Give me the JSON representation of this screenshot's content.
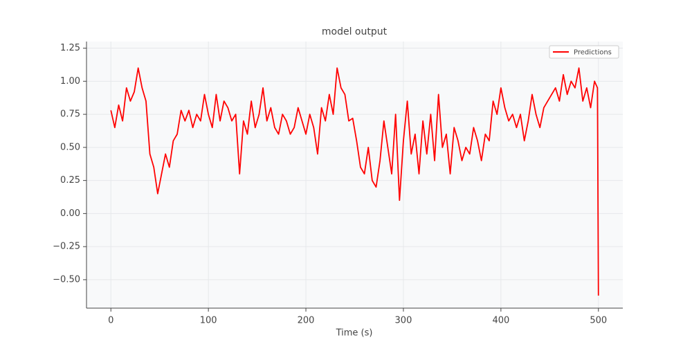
{
  "chart_data": {
    "type": "line",
    "title": "model output",
    "xlabel": "Time (s)",
    "x": [
      0,
      4,
      8,
      12,
      16,
      20,
      24,
      28,
      32,
      36,
      40,
      44,
      48,
      52,
      56,
      60,
      64,
      68,
      72,
      76,
      80,
      84,
      88,
      92,
      96,
      100,
      104,
      108,
      112,
      116,
      120,
      124,
      128,
      132,
      136,
      140,
      144,
      148,
      152,
      156,
      160,
      164,
      168,
      172,
      176,
      180,
      184,
      188,
      192,
      196,
      200,
      204,
      208,
      212,
      216,
      220,
      224,
      228,
      232,
      236,
      240,
      244,
      248,
      252,
      256,
      260,
      264,
      268,
      272,
      276,
      280,
      284,
      288,
      292,
      296,
      300,
      304,
      308,
      312,
      316,
      320,
      324,
      328,
      332,
      336,
      340,
      344,
      348,
      352,
      356,
      360,
      364,
      368,
      372,
      376,
      380,
      384,
      388,
      392,
      396,
      400,
      404,
      408,
      412,
      416,
      420,
      424,
      428,
      432,
      436,
      440,
      444,
      448,
      452,
      456,
      460,
      464,
      468,
      472,
      476,
      480,
      484,
      488,
      492,
      496,
      499,
      500
    ],
    "series": [
      {
        "name": "Predictions",
        "color": "#ff0000",
        "values": [
          0.78,
          0.65,
          0.82,
          0.7,
          0.95,
          0.85,
          0.92,
          1.1,
          0.95,
          0.85,
          0.45,
          0.35,
          0.15,
          0.3,
          0.45,
          0.35,
          0.55,
          0.6,
          0.78,
          0.7,
          0.78,
          0.65,
          0.75,
          0.7,
          0.9,
          0.75,
          0.65,
          0.9,
          0.7,
          0.85,
          0.8,
          0.7,
          0.75,
          0.3,
          0.7,
          0.6,
          0.85,
          0.65,
          0.75,
          0.95,
          0.7,
          0.8,
          0.65,
          0.6,
          0.75,
          0.7,
          0.6,
          0.65,
          0.8,
          0.7,
          0.6,
          0.75,
          0.65,
          0.45,
          0.8,
          0.7,
          0.9,
          0.75,
          1.1,
          0.95,
          0.9,
          0.7,
          0.72,
          0.55,
          0.35,
          0.3,
          0.5,
          0.25,
          0.2,
          0.4,
          0.7,
          0.5,
          0.3,
          0.75,
          0.1,
          0.55,
          0.85,
          0.45,
          0.6,
          0.3,
          0.7,
          0.45,
          0.75,
          0.4,
          0.9,
          0.5,
          0.6,
          0.3,
          0.65,
          0.55,
          0.4,
          0.5,
          0.45,
          0.65,
          0.55,
          0.4,
          0.6,
          0.55,
          0.85,
          0.75,
          0.95,
          0.8,
          0.7,
          0.75,
          0.65,
          0.75,
          0.55,
          0.7,
          0.9,
          0.75,
          0.65,
          0.8,
          0.85,
          0.9,
          0.95,
          0.85,
          1.05,
          0.9,
          1.0,
          0.95,
          1.1,
          0.85,
          0.95,
          0.8,
          1.0,
          0.95,
          -0.62
        ]
      }
    ],
    "xlim": [
      -25,
      525
    ],
    "xticks": [
      0,
      100,
      200,
      300,
      400,
      500
    ],
    "ylim": [
      -0.715,
      1.3
    ],
    "yticks": [
      {
        "value": -0.5,
        "label": "−0.50"
      },
      {
        "value": -0.25,
        "label": "−0.25"
      },
      {
        "value": 0,
        "label": "0.00"
      },
      {
        "value": 0.25,
        "label": "0.25"
      },
      {
        "value": 0.5,
        "label": "0.50"
      },
      {
        "value": 0.75,
        "label": "0.75"
      },
      {
        "value": 1.0,
        "label": "1.00"
      },
      {
        "value": 1.25,
        "label": "1.25"
      }
    ],
    "grid": true,
    "legend": "upper right"
  }
}
